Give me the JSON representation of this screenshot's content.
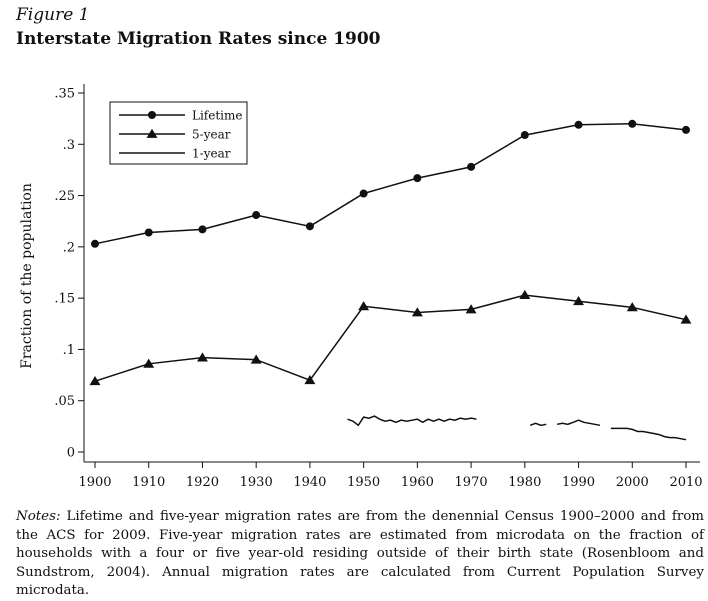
{
  "figure": {
    "label": "Figure 1",
    "title": "Interstate Migration Rates since 1900",
    "notes_lead": "Notes:",
    "notes_body": " Lifetime and five-year migration rates are from the denennial Census 1900–2000 and from the ACS for 2009. Five-year migration rates are estimated from microdata on the fraction of households with a four or five year-old residing outside of their birth state (Rosenbloom and Sundstrom, 2004). Annual migration rates are calculated from Current Population Survey microdata."
  },
  "chart_data": {
    "type": "line",
    "title": "Interstate Migration Rates since 1900",
    "xlabel": "",
    "ylabel": "Fraction of the population",
    "xlim": [
      1900,
      2010
    ],
    "ylim": [
      0,
      0.35
    ],
    "x_ticks": [
      {
        "value": 1900,
        "label": "1900"
      },
      {
        "value": 1910,
        "label": "1910"
      },
      {
        "value": 1920,
        "label": "1920"
      },
      {
        "value": 1930,
        "label": "1930"
      },
      {
        "value": 1940,
        "label": "1940"
      },
      {
        "value": 1950,
        "label": "1950"
      },
      {
        "value": 1960,
        "label": "1960"
      },
      {
        "value": 1970,
        "label": "1970"
      },
      {
        "value": 1980,
        "label": "1980"
      },
      {
        "value": 1990,
        "label": "1990"
      },
      {
        "value": 2000,
        "label": "2000"
      },
      {
        "value": 2010,
        "label": "2010"
      }
    ],
    "y_ticks": [
      {
        "value": 0,
        "label": "0"
      },
      {
        "value": 0.05,
        "label": ".05"
      },
      {
        "value": 0.1,
        "label": ".1"
      },
      {
        "value": 0.15,
        "label": ".15"
      },
      {
        "value": 0.2,
        "label": ".2"
      },
      {
        "value": 0.25,
        "label": ".25"
      },
      {
        "value": 0.3,
        "label": ".3"
      },
      {
        "value": 0.35,
        "label": ".35"
      }
    ],
    "grid": false,
    "legend_position": "top-left",
    "series": [
      {
        "name": "Lifetime",
        "marker": "circle",
        "points": [
          [
            1900,
            0.203
          ],
          [
            1910,
            0.214
          ],
          [
            1920,
            0.217
          ],
          [
            1930,
            0.231
          ],
          [
            1940,
            0.22
          ],
          [
            1950,
            0.252
          ],
          [
            1960,
            0.267
          ],
          [
            1970,
            0.278
          ],
          [
            1980,
            0.309
          ],
          [
            1990,
            0.319
          ],
          [
            2000,
            0.32
          ],
          [
            2010,
            0.314
          ]
        ]
      },
      {
        "name": "5-year",
        "marker": "triangle",
        "points": [
          [
            1900,
            0.069
          ],
          [
            1910,
            0.086
          ],
          [
            1920,
            0.092
          ],
          [
            1930,
            0.09
          ],
          [
            1940,
            0.07
          ],
          [
            1950,
            0.142
          ],
          [
            1960,
            0.136
          ],
          [
            1970,
            0.139
          ],
          [
            1980,
            0.153
          ],
          [
            1990,
            0.147
          ],
          [
            2000,
            0.141
          ],
          [
            2010,
            0.129
          ]
        ]
      },
      {
        "name": "1-year",
        "marker": "none",
        "segments": [
          [
            [
              1947,
              0.032
            ],
            [
              1948,
              0.03
            ],
            [
              1949,
              0.026
            ],
            [
              1950,
              0.034
            ],
            [
              1951,
              0.033
            ],
            [
              1952,
              0.035
            ],
            [
              1953,
              0.032
            ],
            [
              1954,
              0.03
            ],
            [
              1955,
              0.031
            ],
            [
              1956,
              0.029
            ],
            [
              1957,
              0.031
            ],
            [
              1958,
              0.03
            ],
            [
              1959,
              0.031
            ],
            [
              1960,
              0.032
            ],
            [
              1961,
              0.029
            ],
            [
              1962,
              0.032
            ],
            [
              1963,
              0.03
            ],
            [
              1964,
              0.032
            ],
            [
              1965,
              0.03
            ],
            [
              1966,
              0.032
            ],
            [
              1967,
              0.031
            ],
            [
              1968,
              0.033
            ],
            [
              1969,
              0.032
            ],
            [
              1970,
              0.033
            ],
            [
              1971,
              0.032
            ]
          ],
          [
            [
              1981,
              0.026
            ],
            [
              1982,
              0.028
            ],
            [
              1983,
              0.026
            ],
            [
              1984,
              0.027
            ]
          ],
          [
            [
              1986,
              0.027
            ],
            [
              1987,
              0.028
            ],
            [
              1988,
              0.027
            ],
            [
              1989,
              0.029
            ],
            [
              1990,
              0.031
            ],
            [
              1991,
              0.029
            ],
            [
              1992,
              0.028
            ],
            [
              1993,
              0.027
            ],
            [
              1994,
              0.026
            ]
          ],
          [
            [
              1996,
              0.023
            ],
            [
              1997,
              0.023
            ],
            [
              1998,
              0.023
            ],
            [
              1999,
              0.023
            ],
            [
              2000,
              0.022
            ],
            [
              2001,
              0.02
            ],
            [
              2002,
              0.02
            ],
            [
              2003,
              0.019
            ],
            [
              2004,
              0.018
            ],
            [
              2005,
              0.017
            ],
            [
              2006,
              0.015
            ],
            [
              2007,
              0.014
            ],
            [
              2008,
              0.014
            ],
            [
              2009,
              0.013
            ],
            [
              2010,
              0.012
            ]
          ]
        ]
      }
    ]
  }
}
